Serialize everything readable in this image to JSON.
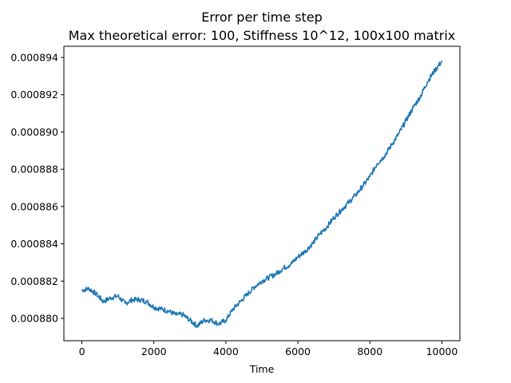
{
  "chart_data": {
    "type": "line",
    "title": "Error per time step",
    "subtitle": "Max theoretical error: 100, Stiffness 10^12, 100x100 matrix",
    "xlabel": "Time",
    "ylabel": "",
    "xlim": [
      -500,
      10500
    ],
    "ylim": [
      0.0008788,
      0.0008946
    ],
    "xticks": [
      0,
      2000,
      4000,
      6000,
      8000,
      10000
    ],
    "xtick_labels": [
      "0",
      "2000",
      "4000",
      "6000",
      "8000",
      "10000"
    ],
    "yticks": [
      0.00088,
      0.000882,
      0.000884,
      0.000886,
      0.000888,
      0.00089,
      0.000892,
      0.000894
    ],
    "ytick_labels": [
      "0.000880",
      "0.000882",
      "0.000884",
      "0.000886",
      "0.000888",
      "0.000890",
      "0.000892",
      "0.000894"
    ],
    "grid": false,
    "series": [
      {
        "color": "#1f77b4",
        "x": [
          0,
          200,
          400,
          600,
          800,
          1000,
          1200,
          1400,
          1600,
          1800,
          2000,
          2200,
          2400,
          2600,
          2800,
          3000,
          3200,
          3400,
          3600,
          3800,
          4000,
          4200,
          4400,
          4600,
          4800,
          5000,
          5200,
          5400,
          5600,
          5800,
          6000,
          6200,
          6400,
          6600,
          6800,
          7000,
          7200,
          7400,
          7600,
          7800,
          8000,
          8200,
          8400,
          8600,
          8800,
          9000,
          9200,
          9400,
          9600,
          9800,
          10000
        ],
        "y": [
          0.0008815,
          0.0008816,
          0.0008813,
          0.0008809,
          0.0008811,
          0.0008812,
          0.0008808,
          0.000881,
          0.000881,
          0.0008809,
          0.0008806,
          0.0008805,
          0.0008804,
          0.0008802,
          0.0008802,
          0.0008799,
          0.0008796,
          0.0008799,
          0.0008799,
          0.0008797,
          0.0008799,
          0.0008805,
          0.0008809,
          0.0008813,
          0.0008817,
          0.000882,
          0.0008822,
          0.0008824,
          0.0008827,
          0.0008829,
          0.0008833,
          0.0008836,
          0.000884,
          0.0008845,
          0.0008849,
          0.0008854,
          0.0008858,
          0.0008862,
          0.0008866,
          0.0008871,
          0.0008876,
          0.0008883,
          0.0008887,
          0.0008893,
          0.0008899,
          0.0008906,
          0.0008913,
          0.0008919,
          0.0008927,
          0.0008933,
          0.0008938
        ]
      }
    ]
  }
}
